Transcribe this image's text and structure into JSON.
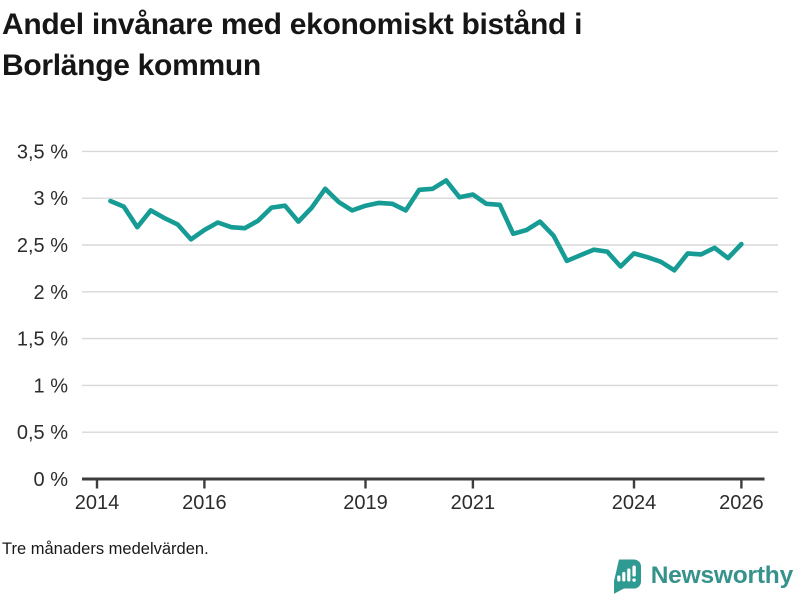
{
  "title_lines": [
    "Andel invånare med ekonomiskt bistånd i",
    "Borlänge kommun"
  ],
  "footnote": "Tre månaders medelvärden.",
  "branding": {
    "logo_text": "Newsworthy",
    "logo_icon": "bar-chart-speech-bubble-icon"
  },
  "colors": {
    "background": "#ffffff",
    "line": "#169c94",
    "grid": "#d8d8d8",
    "axis": "#3d3d3d",
    "tick_label": "#2c2c2c",
    "title": "#161616",
    "footnote": "#191919",
    "logo": "#37928b",
    "logo_icon": "#2e9a92"
  },
  "chart_data": {
    "type": "line",
    "title": "Andel invånare med ekonomiskt bistånd i Borlänge kommun",
    "footnote": "Tre månaders medelvärden.",
    "xlabel": "",
    "ylabel": "",
    "y_unit": "%",
    "x_unit": "year (quarterly points, three-month means)",
    "grid": "horizontal",
    "legend": "none",
    "ylim": [
      0,
      3.5
    ],
    "xlim": [
      2013.72,
      2026.68
    ],
    "xticks": {
      "values": [
        2014,
        2016,
        2019,
        2021,
        2024,
        2026
      ],
      "labels": [
        "2014",
        "2016",
        "2019",
        "2021",
        "2024",
        "2026"
      ]
    },
    "yticks": {
      "values": [
        0,
        0.5,
        1,
        1.5,
        2,
        2.5,
        3,
        3.5
      ],
      "labels": [
        "0 %",
        "0,5 %",
        "1 %",
        "1,5 %",
        "2 %",
        "2,5 %",
        "3 %",
        "3,5 %"
      ]
    },
    "series": [
      {
        "name": "Andel invånare med ekonomiskt bistånd, Borlänge kommun",
        "color": "#169c94",
        "x": [
          2014.25,
          2014.5,
          2014.75,
          2015.0,
          2015.25,
          2015.5,
          2015.75,
          2016.0,
          2016.25,
          2016.5,
          2016.75,
          2017.0,
          2017.25,
          2017.5,
          2017.75,
          2018.0,
          2018.25,
          2018.5,
          2018.75,
          2019.0,
          2019.25,
          2019.5,
          2019.75,
          2020.0,
          2020.25,
          2020.5,
          2020.75,
          2021.0,
          2021.25,
          2021.5,
          2021.75,
          2022.0,
          2022.25,
          2022.5,
          2022.75,
          2023.0,
          2023.25,
          2023.5,
          2023.75,
          2024.0,
          2024.25,
          2024.5,
          2024.75,
          2025.0,
          2025.25,
          2025.5,
          2025.75,
          2026.0
        ],
        "values": [
          2.97,
          2.91,
          2.69,
          2.87,
          2.79,
          2.72,
          2.56,
          2.66,
          2.74,
          2.69,
          2.68,
          2.76,
          2.9,
          2.92,
          2.75,
          2.9,
          3.1,
          2.96,
          2.87,
          2.92,
          2.95,
          2.94,
          2.87,
          3.09,
          3.1,
          3.19,
          3.01,
          3.04,
          2.94,
          2.93,
          2.62,
          2.66,
          2.75,
          2.6,
          2.33,
          2.39,
          2.45,
          2.43,
          2.27,
          2.41,
          2.37,
          2.32,
          2.23,
          2.41,
          2.4,
          2.47,
          2.36,
          2.51
        ]
      }
    ]
  }
}
